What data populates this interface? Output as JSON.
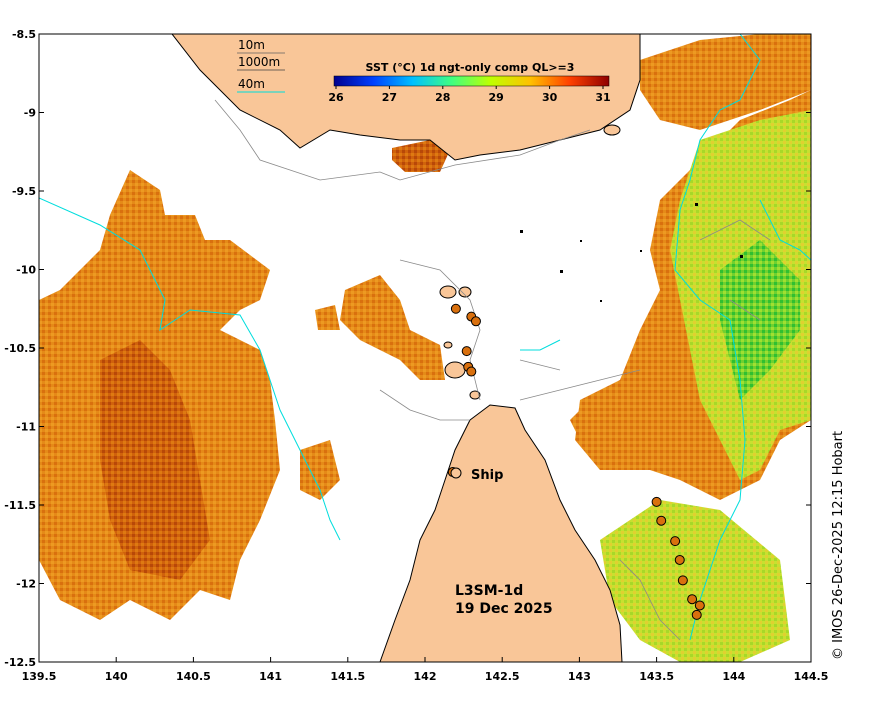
{
  "legend": {
    "title": "SST (°C) 1d ngt-only comp QL>=3",
    "ticks": [
      "26",
      "27",
      "28",
      "29",
      "30",
      "31"
    ],
    "colorbar_colors": [
      "#00008f",
      "#0040ff",
      "#00c0ff",
      "#40ff80",
      "#c0ff00",
      "#ffc000",
      "#ff4000",
      "#8f0000"
    ]
  },
  "depth_legend": {
    "items": [
      {
        "label": "10m",
        "color": "#606060"
      },
      {
        "label": "1000m",
        "color": "#404040"
      },
      {
        "label": "40m",
        "color": "#00dddd"
      }
    ]
  },
  "axes": {
    "x_ticks": [
      "139.5",
      "140",
      "140.5",
      "141",
      "141.5",
      "142",
      "142.5",
      "143",
      "143.5",
      "144",
      "144.5"
    ],
    "y_ticks": [
      "-8.5",
      "-9",
      "-9.5",
      "-10",
      "-10.5",
      "-11",
      "-11.5",
      "-12",
      "-12.5"
    ],
    "xlim": [
      139.5,
      144.5
    ],
    "ylim": [
      -12.5,
      -8.5
    ]
  },
  "labels": {
    "ship": "Ship",
    "product": "L3SM-1d",
    "date": "19 Dec 2025",
    "credit": "© IMOS 26-Dec-2025 12:15 Hobart"
  },
  "colors": {
    "land": "#f9c698",
    "sst_warm": "#e07810",
    "sst_hot": "#c84a08",
    "sst_mid": "#f0a020",
    "sst_cool": "#b0e030",
    "sst_green": "#30c030",
    "isobath_40m": "#00dddd",
    "coast": "#000000"
  },
  "ship_track": [
    {
      "lon": 143.5,
      "lat": -11.48
    },
    {
      "lon": 143.53,
      "lat": -11.6
    },
    {
      "lon": 143.62,
      "lat": -11.73
    },
    {
      "lon": 143.65,
      "lat": -11.85
    },
    {
      "lon": 143.67,
      "lat": -11.98
    },
    {
      "lon": 143.73,
      "lat": -12.1
    },
    {
      "lon": 143.78,
      "lat": -12.14
    },
    {
      "lon": 143.76,
      "lat": -12.2
    },
    {
      "lon": 142.2,
      "lat": -10.25
    },
    {
      "lon": 142.3,
      "lat": -10.3
    },
    {
      "lon": 142.33,
      "lat": -10.33
    },
    {
      "lon": 142.27,
      "lat": -10.52
    },
    {
      "lon": 142.28,
      "lat": -10.62
    },
    {
      "lon": 142.3,
      "lat": -10.65
    },
    {
      "lon": 142.18,
      "lat": -11.29
    }
  ]
}
